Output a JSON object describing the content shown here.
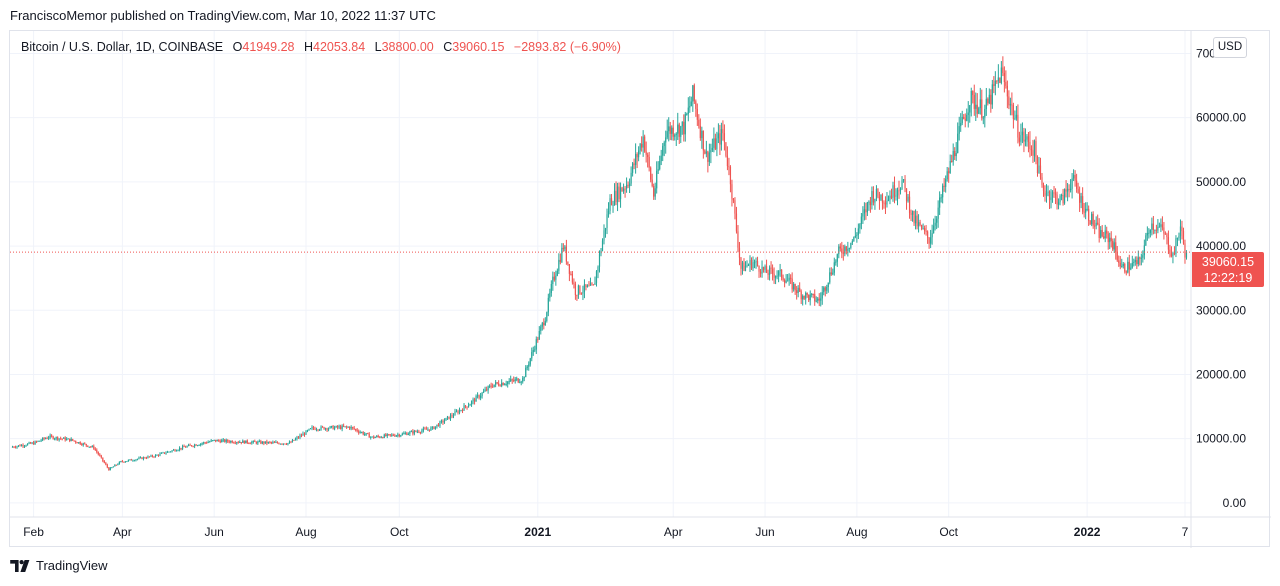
{
  "header": {
    "published_text": "FranciscoMemor published on TradingView.com, Mar 10, 2022 11:37 UTC"
  },
  "legend": {
    "symbol": "Bitcoin / U.S. Dollar, 1D, COINBASE",
    "o_label": "O",
    "open": "41949.28",
    "h_label": "H",
    "high": "42053.84",
    "l_label": "L",
    "low": "38800.00",
    "c_label": "C",
    "close": "39060.15",
    "change": "−2893.82 (−6.90%)"
  },
  "currency": "USD",
  "last_price": {
    "price": "39060.15",
    "countdown": "12:22:19"
  },
  "footer": {
    "brand": "TradingView"
  },
  "colors": {
    "up": "#26a69a",
    "down": "#ef5350",
    "grid": "#f0f3fa",
    "axis_text": "#131722"
  },
  "chart_data": {
    "type": "candlestick",
    "title": "Bitcoin / U.S. Dollar, 1D, COINBASE",
    "currency": "USD",
    "y_ticks": [
      "0.00",
      "10000.00",
      "20000.00",
      "30000.00",
      "40000.00",
      "50000.00",
      "60000.00",
      "70000.00"
    ],
    "ylim": [
      -2200,
      73500
    ],
    "x_labels": [
      "Feb",
      "Apr",
      "Jun",
      "Aug",
      "Oct",
      "2021",
      "Apr",
      "Jun",
      "Aug",
      "Oct",
      "2022",
      "7"
    ],
    "x_label_days": [
      0,
      59,
      120,
      181,
      243,
      335,
      425,
      486,
      547,
      608,
      700,
      765
    ],
    "x_range_days": [
      -15,
      769
    ],
    "bold_labels": [
      "2021",
      "2022"
    ],
    "last_close": 39060.15,
    "price_path": [
      [
        -15,
        8700
      ],
      [
        0,
        9300
      ],
      [
        10,
        10300
      ],
      [
        25,
        9800
      ],
      [
        40,
        8600
      ],
      [
        50,
        5200
      ],
      [
        58,
        6400
      ],
      [
        80,
        7300
      ],
      [
        100,
        8700
      ],
      [
        120,
        9700
      ],
      [
        150,
        9400
      ],
      [
        170,
        9300
      ],
      [
        185,
        11600
      ],
      [
        210,
        11800
      ],
      [
        225,
        10200
      ],
      [
        245,
        10700
      ],
      [
        265,
        11600
      ],
      [
        290,
        15500
      ],
      [
        305,
        18400
      ],
      [
        325,
        19300
      ],
      [
        340,
        29000
      ],
      [
        345,
        34500
      ],
      [
        352,
        40000
      ],
      [
        360,
        33000
      ],
      [
        372,
        33500
      ],
      [
        383,
        47000
      ],
      [
        395,
        50000
      ],
      [
        405,
        57000
      ],
      [
        412,
        48000
      ],
      [
        420,
        58000
      ],
      [
        432,
        58500
      ],
      [
        438,
        63500
      ],
      [
        447,
        54000
      ],
      [
        458,
        57500
      ],
      [
        463,
        50500
      ],
      [
        470,
        36500
      ],
      [
        478,
        37500
      ],
      [
        486,
        36000
      ],
      [
        497,
        35500
      ],
      [
        510,
        32500
      ],
      [
        522,
        31500
      ],
      [
        535,
        39000
      ],
      [
        545,
        41000
      ],
      [
        557,
        48000
      ],
      [
        567,
        47500
      ],
      [
        577,
        50000
      ],
      [
        585,
        44000
      ],
      [
        595,
        41000
      ],
      [
        603,
        47500
      ],
      [
        612,
        55000
      ],
      [
        622,
        63000
      ],
      [
        632,
        61000
      ],
      [
        643,
        67000
      ],
      [
        655,
        57500
      ],
      [
        665,
        55000
      ],
      [
        670,
        49000
      ],
      [
        683,
        47000
      ],
      [
        690,
        50500
      ],
      [
        697,
        46500
      ],
      [
        708,
        42000
      ],
      [
        716,
        41000
      ],
      [
        723,
        36500
      ],
      [
        735,
        37500
      ],
      [
        742,
        43500
      ],
      [
        750,
        42500
      ],
      [
        757,
        38500
      ],
      [
        762,
        43000
      ],
      [
        765,
        39060
      ]
    ]
  }
}
